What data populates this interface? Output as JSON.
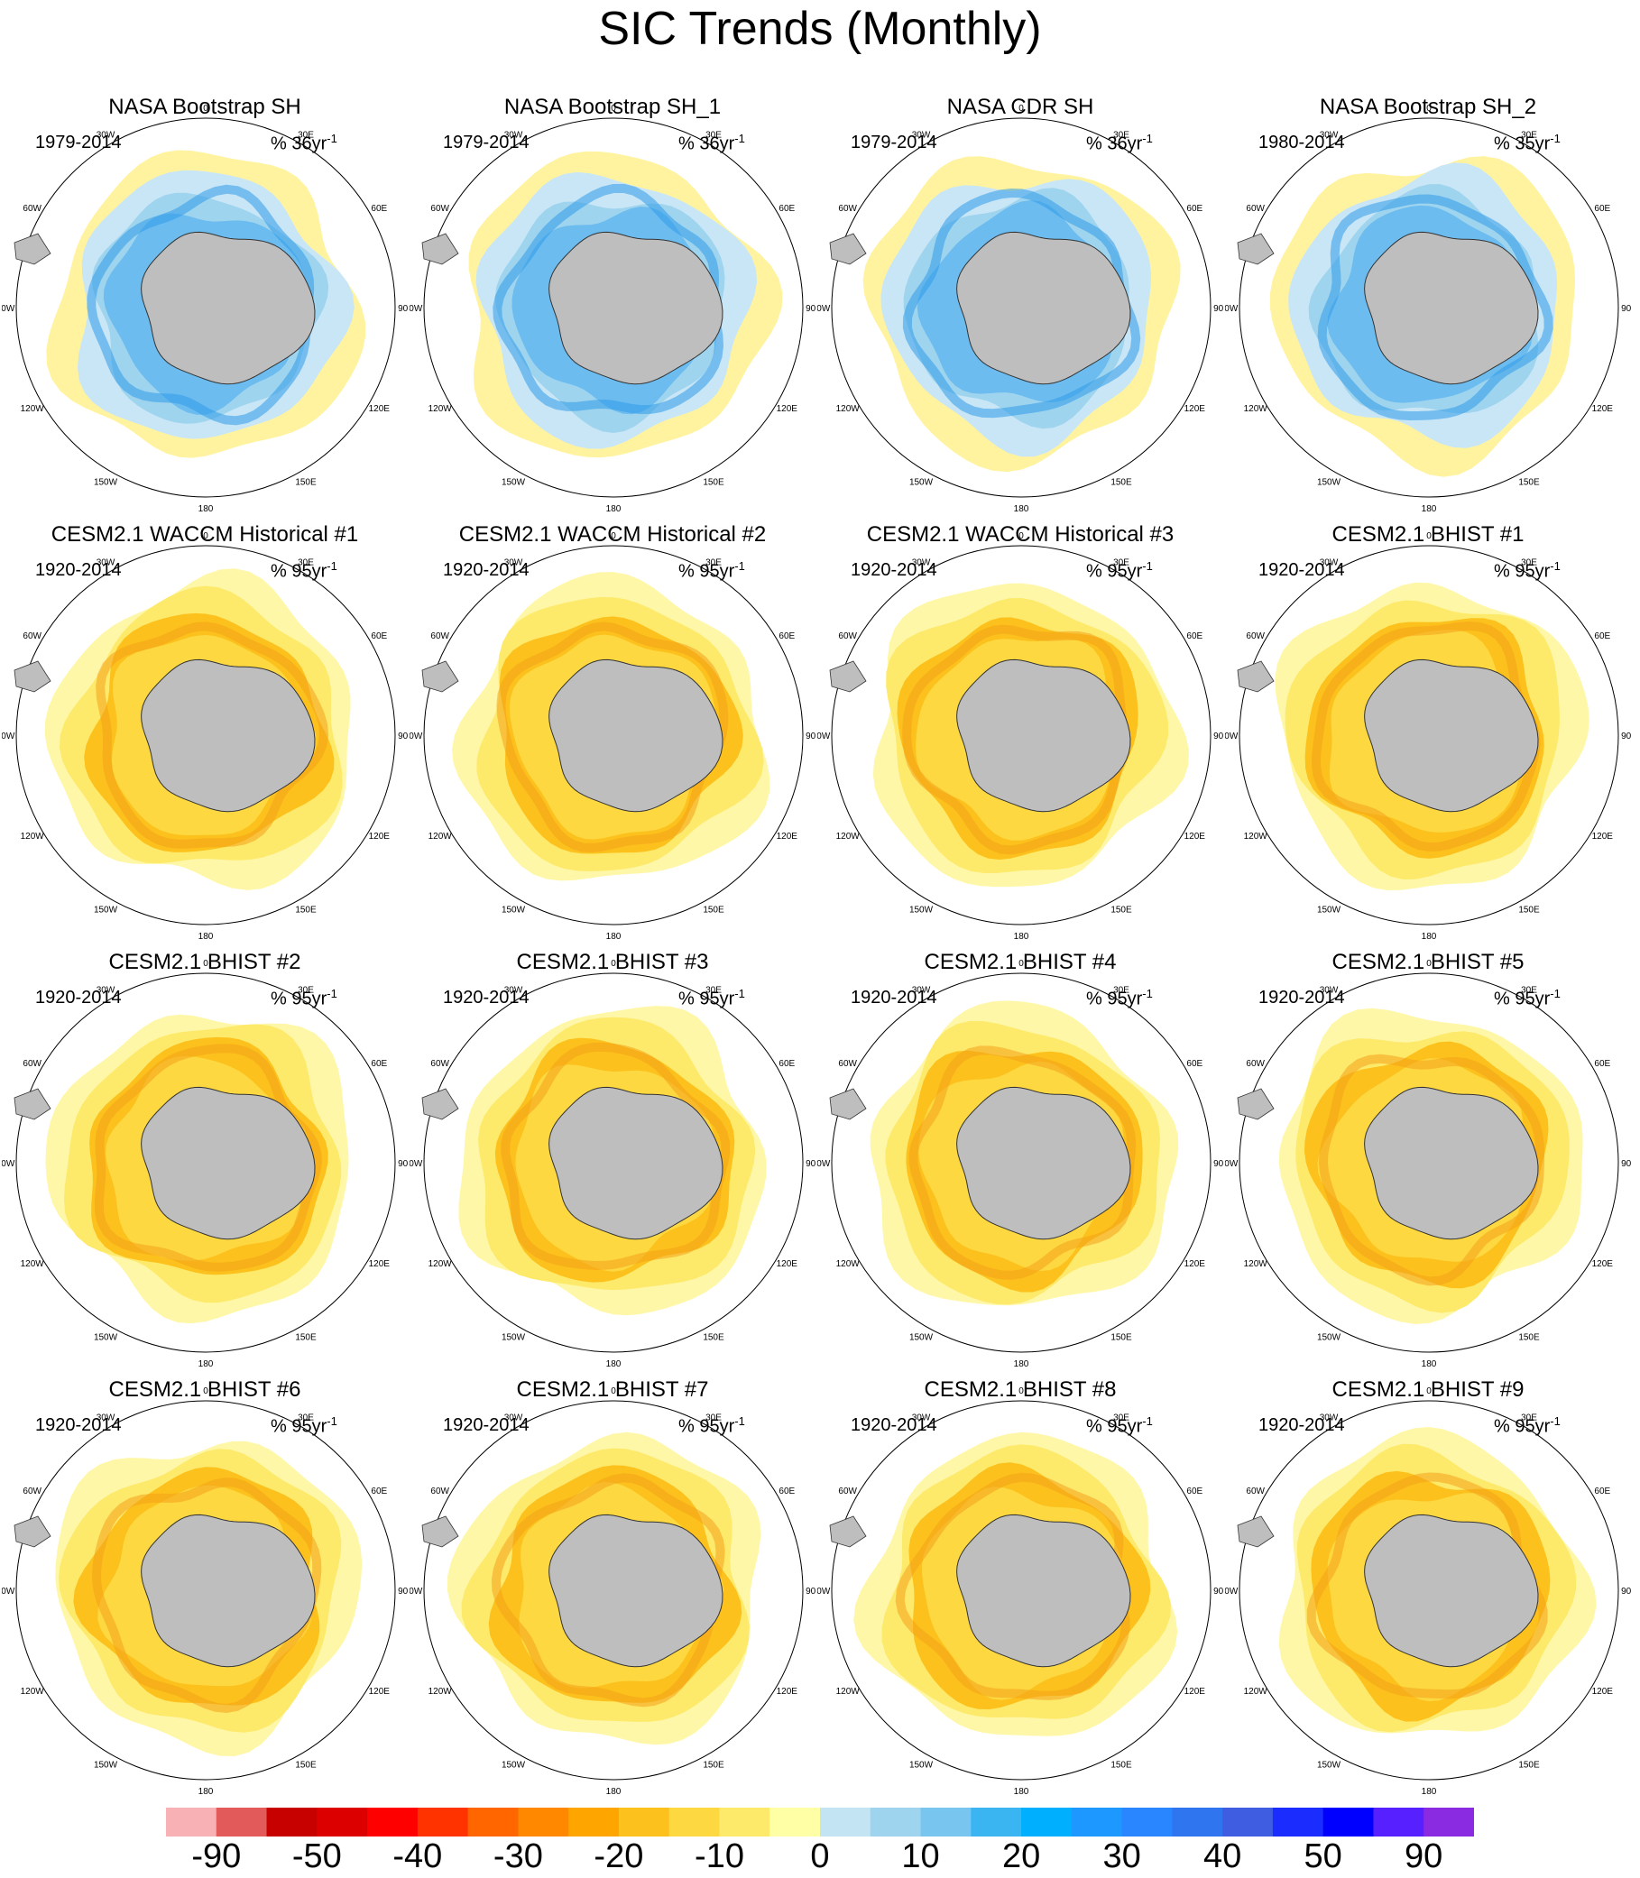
{
  "title": "SIC Trends (Monthly)",
  "panels": [
    {
      "title": "NASA Bootstrap SH",
      "period": "1979-2014",
      "units": "% 36yr",
      "exp": "-1",
      "pattern": "obs"
    },
    {
      "title": "NASA Bootstrap SH_1",
      "period": "1979-2014",
      "units": "% 36yr",
      "exp": "-1",
      "pattern": "obs"
    },
    {
      "title": "NASA CDR SH",
      "period": "1979-2014",
      "units": "% 36yr",
      "exp": "-1",
      "pattern": "obs"
    },
    {
      "title": "NASA Bootstrap SH_2",
      "period": "1980-2014",
      "units": "% 35yr",
      "exp": "-1",
      "pattern": "obs"
    },
    {
      "title": "CESM2.1 WACCM Historical #1",
      "period": "1920-2014",
      "units": "% 95yr",
      "exp": "-1",
      "pattern": "model"
    },
    {
      "title": "CESM2.1 WACCM Historical #2",
      "period": "1920-2014",
      "units": "% 95yr",
      "exp": "-1",
      "pattern": "model"
    },
    {
      "title": "CESM2.1 WACCM Historical #3",
      "period": "1920-2014",
      "units": "% 95yr",
      "exp": "-1",
      "pattern": "model"
    },
    {
      "title": "CESM2.1 BHIST #1",
      "period": "1920-2014",
      "units": "% 95yr",
      "exp": "-1",
      "pattern": "model"
    },
    {
      "title": "CESM2.1 BHIST #2",
      "period": "1920-2014",
      "units": "% 95yr",
      "exp": "-1",
      "pattern": "model"
    },
    {
      "title": "CESM2.1 BHIST #3",
      "period": "1920-2014",
      "units": "% 95yr",
      "exp": "-1",
      "pattern": "model"
    },
    {
      "title": "CESM2.1 BHIST #4",
      "period": "1920-2014",
      "units": "% 95yr",
      "exp": "-1",
      "pattern": "model"
    },
    {
      "title": "CESM2.1 BHIST #5",
      "period": "1920-2014",
      "units": "% 95yr",
      "exp": "-1",
      "pattern": "model"
    },
    {
      "title": "CESM2.1 BHIST #6",
      "period": "1920-2014",
      "units": "% 95yr",
      "exp": "-1",
      "pattern": "model"
    },
    {
      "title": "CESM2.1 BHIST #7",
      "period": "1920-2014",
      "units": "% 95yr",
      "exp": "-1",
      "pattern": "model"
    },
    {
      "title": "CESM2.1 BHIST #8",
      "period": "1920-2014",
      "units": "% 95yr",
      "exp": "-1",
      "pattern": "model"
    },
    {
      "title": "CESM2.1 BHIST #9",
      "period": "1920-2014",
      "units": "% 95yr",
      "exp": "-1",
      "pattern": "model"
    }
  ],
  "longitude_labels": [
    "0",
    "30E",
    "60E",
    "90E",
    "120E",
    "150E",
    "180",
    "150W",
    "120W",
    "90W",
    "60W",
    "30W"
  ],
  "colorbar": {
    "colors": [
      "#f8b1b4",
      "#e25a5a",
      "#c70000",
      "#dc0000",
      "#ff0000",
      "#ff3300",
      "#ff6600",
      "#ff8800",
      "#ffa500",
      "#fcc11c",
      "#fdd841",
      "#fde96a",
      "#ffffa6",
      "#c2e4f3",
      "#9fd4ef",
      "#78c5f0",
      "#3bb4f2",
      "#00b0ff",
      "#1c98ff",
      "#2a86ff",
      "#2f75f0",
      "#3f5de0",
      "#1b2cff",
      "#0000ff",
      "#5620ff",
      "#8a2be2"
    ],
    "labels": [
      "-90",
      "-50",
      "-40",
      "-30",
      "-20",
      "-10",
      "0",
      "10",
      "20",
      "30",
      "40",
      "50",
      "90"
    ]
  },
  "colors": {
    "land": "#bebebe",
    "ocean": "#ffffff"
  }
}
